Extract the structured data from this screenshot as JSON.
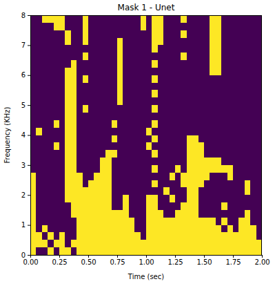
{
  "chart_data": {
    "type": "heatmap",
    "title": "Mask 1 - Unet",
    "xlabel": "Time (sec)",
    "ylabel": "Frequency (KHz)",
    "xlim": [
      0,
      2
    ],
    "ylim": [
      0,
      8
    ],
    "xticks": [
      {
        "value": 0,
        "label": "0.00"
      },
      0.25,
      {
        "value": 0.5,
        "label": "0.50"
      },
      0.75,
      {
        "value": 1,
        "label": "1.00"
      },
      1.25,
      {
        "value": 1.5,
        "label": "1.50"
      },
      1.75,
      {
        "value": 2,
        "label": "2.00"
      }
    ],
    "yticks": [
      0,
      1,
      2,
      3,
      4,
      5,
      6,
      7,
      8
    ],
    "colors": [
      "#440154",
      "#fde725"
    ],
    "cells": [
      [
        0,
        0,
        1,
        1,
        1,
        1,
        0,
        0,
        0,
        1,
        0,
        0,
        0,
        0,
        0,
        0,
        0,
        0,
        0,
        1,
        0,
        1,
        1,
        0,
        0,
        0,
        1,
        0,
        0,
        0,
        0,
        1,
        1,
        0,
        0,
        0,
        0,
        0,
        0,
        0
      ],
      [
        0,
        0,
        0,
        0,
        1,
        1,
        0,
        0,
        0,
        1,
        0,
        0,
        0,
        0,
        0,
        0,
        0,
        0,
        0,
        1,
        0,
        1,
        1,
        0,
        0,
        0,
        0,
        0,
        0,
        0,
        0,
        1,
        1,
        0,
        0,
        0,
        0,
        0,
        0,
        0
      ],
      [
        0,
        0,
        0,
        0,
        0,
        0,
        1,
        0,
        0,
        1,
        0,
        0,
        0,
        0,
        0,
        0,
        0,
        0,
        0,
        0,
        0,
        1,
        1,
        0,
        0,
        0,
        1,
        0,
        0,
        0,
        0,
        1,
        1,
        0,
        0,
        0,
        0,
        0,
        0,
        0
      ],
      [
        0,
        0,
        0,
        0,
        0,
        0,
        1,
        0,
        0,
        1,
        0,
        0,
        0,
        0,
        0,
        1,
        0,
        0,
        0,
        0,
        0,
        1,
        1,
        0,
        0,
        0,
        0,
        0,
        0,
        0,
        0,
        1,
        1,
        0,
        0,
        0,
        0,
        0,
        0,
        0
      ],
      [
        0,
        0,
        0,
        0,
        0,
        0,
        0,
        0,
        0,
        0,
        0,
        0,
        0,
        0,
        0,
        1,
        0,
        0,
        0,
        0,
        0,
        1,
        0,
        0,
        0,
        0,
        0,
        0,
        0,
        0,
        0,
        1,
        1,
        0,
        0,
        0,
        0,
        0,
        0,
        0
      ],
      [
        0,
        0,
        0,
        0,
        0,
        0,
        0,
        0,
        0,
        1,
        0,
        0,
        0,
        0,
        0,
        1,
        0,
        0,
        0,
        0,
        0,
        0,
        0,
        0,
        0,
        0,
        1,
        0,
        0,
        0,
        0,
        1,
        1,
        0,
        0,
        0,
        0,
        0,
        0,
        0
      ],
      [
        0,
        0,
        0,
        0,
        0,
        0,
        0,
        1,
        0,
        0,
        0,
        0,
        0,
        0,
        0,
        1,
        0,
        0,
        0,
        0,
        0,
        1,
        0,
        0,
        0,
        0,
        0,
        0,
        0,
        0,
        0,
        1,
        1,
        0,
        0,
        0,
        0,
        0,
        0,
        0
      ],
      [
        0,
        0,
        0,
        0,
        0,
        0,
        1,
        1,
        0,
        0,
        0,
        0,
        0,
        0,
        0,
        1,
        0,
        0,
        0,
        0,
        0,
        0,
        0,
        0,
        0,
        0,
        0,
        0,
        0,
        0,
        0,
        1,
        1,
        0,
        0,
        0,
        0,
        0,
        0,
        0
      ],
      [
        0,
        0,
        0,
        0,
        0,
        0,
        1,
        1,
        0,
        1,
        0,
        0,
        0,
        0,
        0,
        1,
        0,
        0,
        0,
        0,
        0,
        1,
        0,
        0,
        0,
        0,
        0,
        0,
        0,
        0,
        0,
        0,
        0,
        0,
        0,
        0,
        0,
        0,
        0,
        0
      ],
      [
        0,
        0,
        0,
        0,
        0,
        0,
        1,
        1,
        0,
        0,
        0,
        0,
        0,
        0,
        0,
        1,
        0,
        0,
        0,
        0,
        0,
        0,
        0,
        0,
        0,
        0,
        0,
        0,
        0,
        0,
        0,
        0,
        0,
        0,
        0,
        0,
        0,
        0,
        0,
        0
      ],
      [
        0,
        0,
        0,
        0,
        0,
        0,
        1,
        1,
        0,
        0,
        0,
        0,
        0,
        0,
        0,
        1,
        0,
        0,
        0,
        0,
        0,
        1,
        0,
        0,
        0,
        0,
        0,
        0,
        0,
        0,
        0,
        0,
        0,
        0,
        0,
        0,
        0,
        0,
        0,
        0
      ],
      [
        0,
        0,
        0,
        0,
        0,
        0,
        1,
        1,
        0,
        0,
        0,
        0,
        0,
        0,
        0,
        1,
        0,
        0,
        0,
        0,
        0,
        0,
        0,
        0,
        0,
        0,
        0,
        0,
        0,
        0,
        0,
        0,
        0,
        0,
        0,
        0,
        0,
        0,
        0,
        0
      ],
      [
        0,
        0,
        0,
        0,
        0,
        0,
        1,
        1,
        0,
        1,
        0,
        0,
        0,
        0,
        0,
        0,
        0,
        0,
        0,
        0,
        0,
        1,
        0,
        0,
        0,
        0,
        0,
        0,
        0,
        0,
        0,
        0,
        0,
        0,
        0,
        0,
        0,
        0,
        0,
        0
      ],
      [
        0,
        0,
        0,
        0,
        0,
        0,
        1,
        1,
        0,
        0,
        0,
        0,
        0,
        0,
        0,
        0,
        0,
        0,
        0,
        0,
        0,
        0,
        0,
        0,
        0,
        0,
        0,
        0,
        0,
        0,
        0,
        0,
        0,
        0,
        0,
        0,
        0,
        0,
        0,
        0
      ],
      [
        0,
        0,
        0,
        0,
        1,
        0,
        1,
        1,
        0,
        0,
        0,
        0,
        0,
        0,
        1,
        0,
        0,
        0,
        0,
        0,
        0,
        1,
        0,
        0,
        0,
        0,
        0,
        0,
        0,
        0,
        0,
        0,
        0,
        0,
        0,
        0,
        0,
        0,
        0,
        0
      ],
      [
        0,
        1,
        0,
        0,
        0,
        0,
        1,
        1,
        0,
        0,
        0,
        0,
        0,
        0,
        0,
        0,
        0,
        0,
        0,
        0,
        1,
        0,
        0,
        0,
        0,
        0,
        0,
        0,
        0,
        0,
        0,
        0,
        0,
        0,
        0,
        0,
        0,
        0,
        0,
        0
      ],
      [
        0,
        0,
        0,
        0,
        0,
        0,
        1,
        1,
        0,
        0,
        0,
        0,
        0,
        0,
        1,
        0,
        0,
        0,
        0,
        0,
        0,
        1,
        0,
        0,
        0,
        0,
        0,
        1,
        1,
        0,
        0,
        0,
        0,
        0,
        0,
        0,
        0,
        0,
        0,
        0
      ],
      [
        0,
        0,
        0,
        0,
        1,
        0,
        1,
        1,
        0,
        0,
        0,
        0,
        0,
        0,
        0,
        0,
        0,
        0,
        0,
        0,
        1,
        0,
        0,
        0,
        0,
        0,
        0,
        1,
        1,
        1,
        0,
        0,
        0,
        0,
        0,
        0,
        0,
        0,
        0,
        0
      ],
      [
        0,
        0,
        0,
        0,
        0,
        0,
        1,
        1,
        0,
        0,
        0,
        0,
        0,
        1,
        1,
        0,
        0,
        0,
        0,
        0,
        0,
        1,
        0,
        0,
        0,
        0,
        0,
        1,
        1,
        1,
        0,
        0,
        0,
        0,
        0,
        0,
        0,
        0,
        0,
        0
      ],
      [
        0,
        0,
        0,
        0,
        0,
        0,
        1,
        1,
        0,
        0,
        0,
        0,
        1,
        1,
        0,
        0,
        0,
        0,
        0,
        0,
        0,
        0,
        0,
        0,
        0,
        0,
        0,
        1,
        1,
        1,
        1,
        1,
        1,
        0,
        0,
        0,
        0,
        0,
        0,
        0
      ],
      [
        0,
        0,
        0,
        0,
        0,
        0,
        1,
        1,
        0,
        0,
        0,
        0,
        1,
        1,
        0,
        0,
        0,
        0,
        0,
        0,
        0,
        1,
        0,
        0,
        0,
        1,
        0,
        1,
        1,
        1,
        1,
        1,
        1,
        1,
        1,
        0,
        0,
        0,
        0,
        0
      ],
      [
        1,
        0,
        0,
        0,
        0,
        0,
        1,
        1,
        1,
        0,
        0,
        1,
        1,
        1,
        0,
        0,
        0,
        0,
        0,
        0,
        0,
        0,
        0,
        0,
        1,
        0,
        1,
        1,
        1,
        1,
        1,
        0,
        0,
        0,
        1,
        0,
        0,
        0,
        0,
        0
      ],
      [
        1,
        0,
        0,
        0,
        0,
        0,
        1,
        1,
        1,
        0,
        1,
        1,
        1,
        1,
        0,
        0,
        0,
        0,
        0,
        0,
        0,
        1,
        0,
        0,
        0,
        0,
        1,
        1,
        1,
        1,
        0,
        0,
        0,
        0,
        0,
        0,
        0,
        1,
        0,
        0
      ],
      [
        1,
        0,
        0,
        0,
        0,
        0,
        1,
        1,
        1,
        1,
        1,
        1,
        1,
        1,
        0,
        0,
        0,
        0,
        0,
        0,
        0,
        0,
        0,
        1,
        0,
        0,
        0,
        1,
        1,
        0,
        0,
        0,
        0,
        0,
        0,
        0,
        0,
        1,
        0,
        0
      ],
      [
        1,
        0,
        0,
        0,
        0,
        0,
        1,
        1,
        1,
        1,
        1,
        1,
        1,
        1,
        0,
        0,
        1,
        0,
        0,
        0,
        1,
        1,
        0,
        0,
        1,
        0,
        0,
        1,
        1,
        0,
        0,
        0,
        0,
        0,
        0,
        0,
        0,
        0,
        0,
        0
      ],
      [
        1,
        0,
        0,
        0,
        0,
        0,
        0,
        1,
        1,
        1,
        1,
        1,
        1,
        1,
        0,
        0,
        1,
        0,
        0,
        0,
        1,
        1,
        0,
        0,
        0,
        0,
        1,
        1,
        1,
        0,
        0,
        0,
        0,
        1,
        0,
        0,
        0,
        0,
        0,
        0
      ],
      [
        1,
        0,
        0,
        0,
        0,
        0,
        0,
        1,
        1,
        1,
        1,
        1,
        1,
        1,
        1,
        1,
        1,
        0,
        0,
        0,
        1,
        1,
        1,
        0,
        0,
        1,
        1,
        1,
        1,
        0,
        0,
        0,
        0,
        0,
        0,
        0,
        0,
        1,
        0,
        0
      ],
      [
        1,
        0,
        0,
        0,
        0,
        0,
        0,
        0,
        1,
        1,
        1,
        1,
        1,
        1,
        1,
        1,
        1,
        1,
        0,
        0,
        1,
        1,
        1,
        1,
        1,
        1,
        1,
        1,
        1,
        1,
        1,
        1,
        0,
        1,
        0,
        0,
        1,
        1,
        0,
        0
      ],
      [
        1,
        0,
        1,
        0,
        0,
        0,
        0,
        0,
        1,
        1,
        1,
        1,
        1,
        1,
        1,
        1,
        1,
        1,
        0,
        0,
        1,
        1,
        1,
        1,
        1,
        1,
        1,
        1,
        1,
        1,
        1,
        1,
        1,
        0,
        1,
        0,
        1,
        1,
        1,
        0
      ],
      [
        1,
        1,
        0,
        1,
        0,
        1,
        0,
        0,
        1,
        1,
        1,
        1,
        1,
        1,
        1,
        1,
        1,
        1,
        1,
        0,
        1,
        1,
        1,
        1,
        1,
        1,
        1,
        1,
        1,
        1,
        1,
        1,
        1,
        1,
        1,
        1,
        1,
        1,
        1,
        0
      ],
      [
        1,
        1,
        1,
        0,
        1,
        1,
        0,
        1,
        1,
        1,
        1,
        1,
        1,
        1,
        1,
        1,
        1,
        1,
        1,
        1,
        1,
        1,
        1,
        1,
        1,
        1,
        1,
        1,
        1,
        1,
        1,
        1,
        1,
        1,
        1,
        1,
        1,
        1,
        1,
        1
      ],
      [
        1,
        0,
        0,
        1,
        0,
        1,
        1,
        0,
        1,
        1,
        1,
        1,
        1,
        1,
        1,
        1,
        1,
        1,
        1,
        1,
        1,
        1,
        1,
        1,
        1,
        1,
        1,
        1,
        1,
        1,
        1,
        1,
        1,
        1,
        1,
        1,
        1,
        1,
        1,
        1
      ]
    ]
  }
}
